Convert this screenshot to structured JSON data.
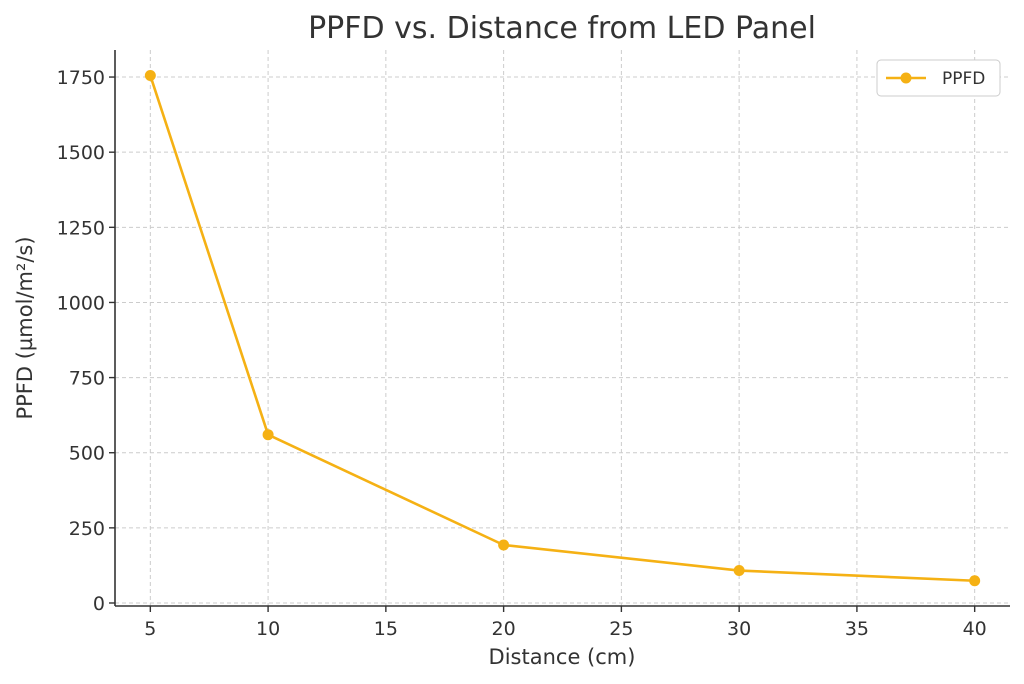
{
  "chart_data": {
    "type": "line",
    "title": "PPFD vs. Distance from LED Panel",
    "xlabel": "Distance (cm)",
    "ylabel": "PPFD (µmol/m²/s)",
    "xlim": [
      3.5,
      41.5
    ],
    "ylim": [
      -10,
      1840
    ],
    "xticks": [
      5,
      10,
      15,
      20,
      25,
      30,
      35,
      40
    ],
    "yticks": [
      0,
      250,
      500,
      750,
      1000,
      1250,
      1500,
      1750
    ],
    "grid": true,
    "legend_position": "top-right",
    "series": [
      {
        "name": "PPFD",
        "color": "#F5B114",
        "marker": "circle",
        "x": [
          5,
          10,
          20,
          30,
          40
        ],
        "y": [
          1755,
          560,
          193,
          108,
          74
        ]
      }
    ]
  }
}
